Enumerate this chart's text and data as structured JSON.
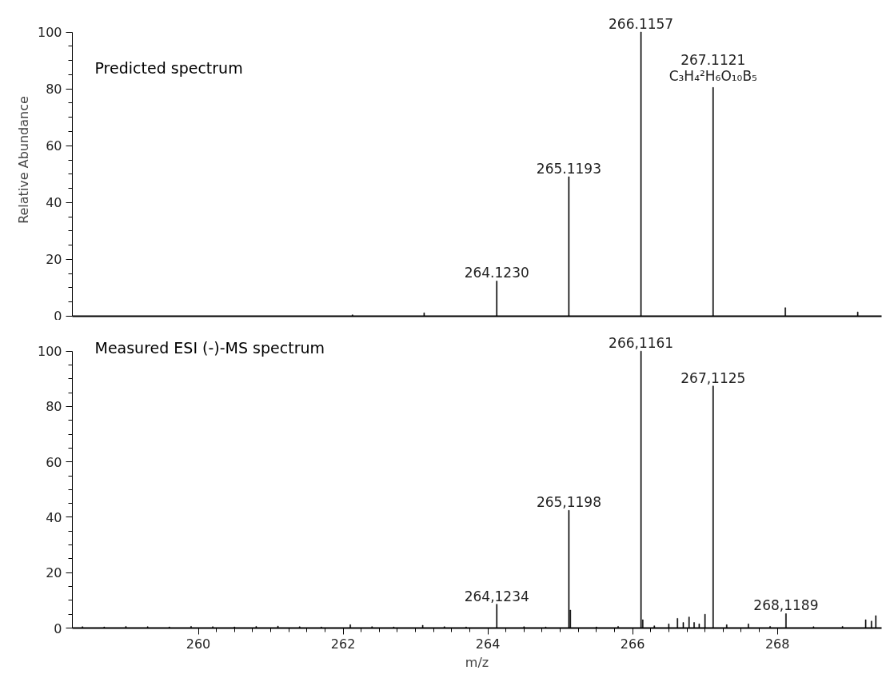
{
  "chart_data": [
    {
      "type": "bar",
      "title": "Predicted spectrum",
      "ylabel": "Relative Abundance",
      "color": "#000000",
      "tick_labels": "y",
      "grid": false,
      "x": [
        262.13,
        263.12,
        264.123,
        265.1193,
        266.1157,
        267.1121,
        268.11,
        269.11
      ],
      "values": [
        0.5,
        1.2,
        12.4,
        49.1,
        100,
        80.5,
        3,
        1.5
      ],
      "xlim": [
        258.26,
        269.44
      ],
      "ylim": [
        0,
        100
      ],
      "yticks": [
        0,
        20,
        40,
        60,
        80,
        100
      ],
      "annotations": [
        {
          "text": "264.1230",
          "x": 264.123,
          "y": 12.4
        },
        {
          "text": "265.1193",
          "x": 265.1193,
          "y": 49.1
        },
        {
          "text": "266.1157",
          "x": 266.1157,
          "y": 100
        },
        {
          "text": "C₃H₄²H₆O₁₀B₅",
          "x": 267.1121,
          "y": 80.5
        },
        {
          "text": "267.1121",
          "x": 267.1121,
          "y": 80.5
        }
      ]
    },
    {
      "type": "bar",
      "title": "Measured ESI (-)-MS spectrum",
      "xlabel": "m/z",
      "color": "#000000",
      "grid": false,
      "x": [
        258.4,
        258.7,
        259.0,
        259.3,
        259.6,
        259.9,
        260.2,
        260.5,
        260.8,
        261.1,
        261.4,
        261.7,
        262.1,
        262.4,
        262.7,
        263.1,
        263.4,
        263.7,
        264.1234,
        264.5,
        264.8,
        265.1198,
        265.14,
        265.5,
        265.8,
        266.1161,
        266.14,
        266.3,
        266.5,
        266.62,
        266.7,
        266.78,
        266.85,
        266.92,
        267.0,
        267.1125,
        267.3,
        267.6,
        267.9,
        268.1189,
        268.5,
        268.9,
        269.22,
        269.3,
        269.36
      ],
      "values": [
        0.5,
        0.4,
        0.6,
        0.5,
        0.4,
        0.6,
        0.5,
        0.4,
        0.6,
        0.7,
        0.5,
        0.4,
        1.2,
        0.5,
        0.4,
        1.0,
        0.5,
        0.4,
        8.6,
        0.5,
        0.4,
        42.5,
        6.5,
        0.4,
        0.6,
        100,
        3,
        0.8,
        1.5,
        3.5,
        2,
        4,
        2,
        1.5,
        5,
        87.4,
        1.2,
        1.5,
        0.6,
        5.2,
        0.5,
        0.6,
        3,
        2.5,
        4.5
      ],
      "xlim": [
        258.26,
        269.44
      ],
      "ylim": [
        0,
        100
      ],
      "yticks": [
        0,
        20,
        40,
        60,
        80,
        100
      ],
      "xticks": [
        260,
        262,
        264,
        266,
        268
      ],
      "annotations": [
        {
          "text": "264,1234",
          "x": 264.1234,
          "y": 8.6
        },
        {
          "text": "265,1198",
          "x": 265.1198,
          "y": 42.5
        },
        {
          "text": "266,1161",
          "x": 266.1161,
          "y": 100
        },
        {
          "text": "267,1125",
          "x": 267.1125,
          "y": 87.4
        },
        {
          "text": "268,1189",
          "x": 268.1189,
          "y": 5.2
        }
      ]
    }
  ]
}
